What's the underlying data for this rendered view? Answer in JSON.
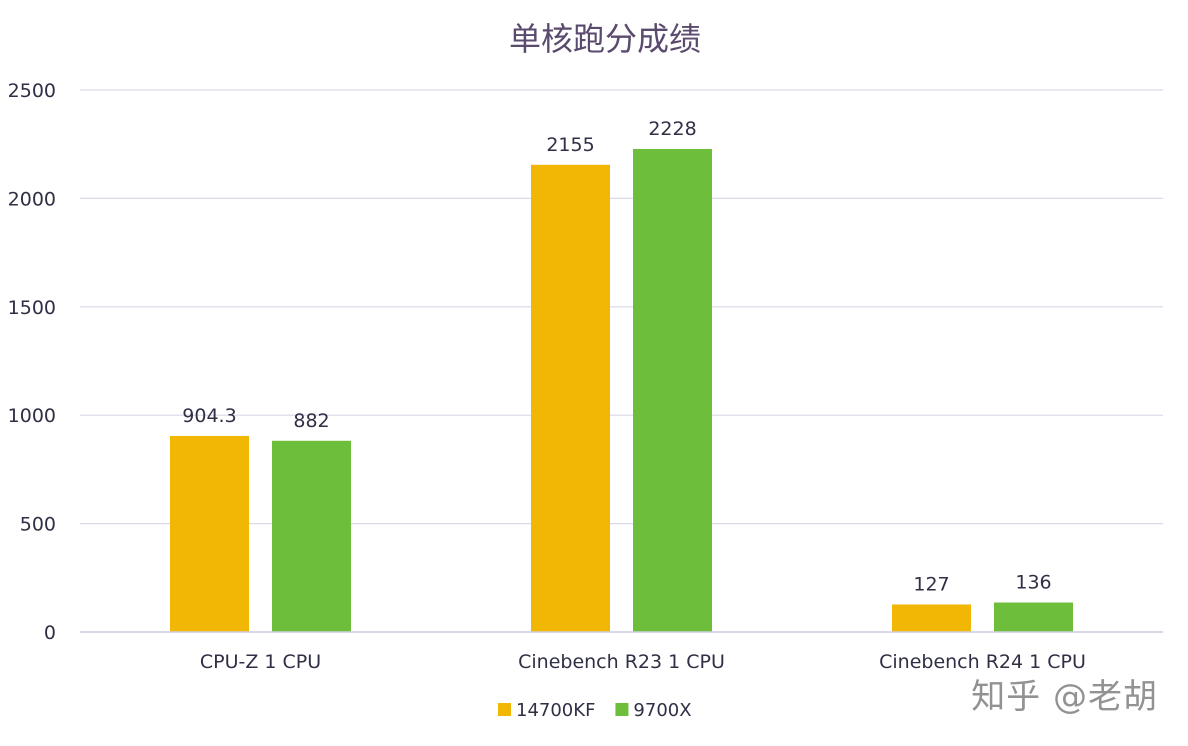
{
  "chart_data": {
    "type": "bar",
    "title": "单核跑分成绩",
    "categories": [
      "CPU-Z 1 CPU",
      "Cinebench R23 1 CPU",
      "Cinebench R24 1 CPU"
    ],
    "series": [
      {
        "name": "14700KF",
        "color": "#F2B705",
        "values": [
          904.3,
          2155,
          127
        ],
        "labels": [
          "904.3",
          "2155",
          "127"
        ]
      },
      {
        "name": "9700X",
        "color": "#6DBE3B",
        "values": [
          882,
          2228,
          136
        ],
        "labels": [
          "882",
          "2228",
          "136"
        ]
      }
    ],
    "ylim": [
      0,
      2500
    ],
    "yticks": [
      0,
      500,
      1000,
      1500,
      2000,
      2500
    ],
    "grid": true,
    "gridColor": "#D9D9E8",
    "textColor": "#2F2F45",
    "titleColor": "#5A4A6E",
    "legend": "bottom-center"
  },
  "watermark": "知乎 @老胡"
}
